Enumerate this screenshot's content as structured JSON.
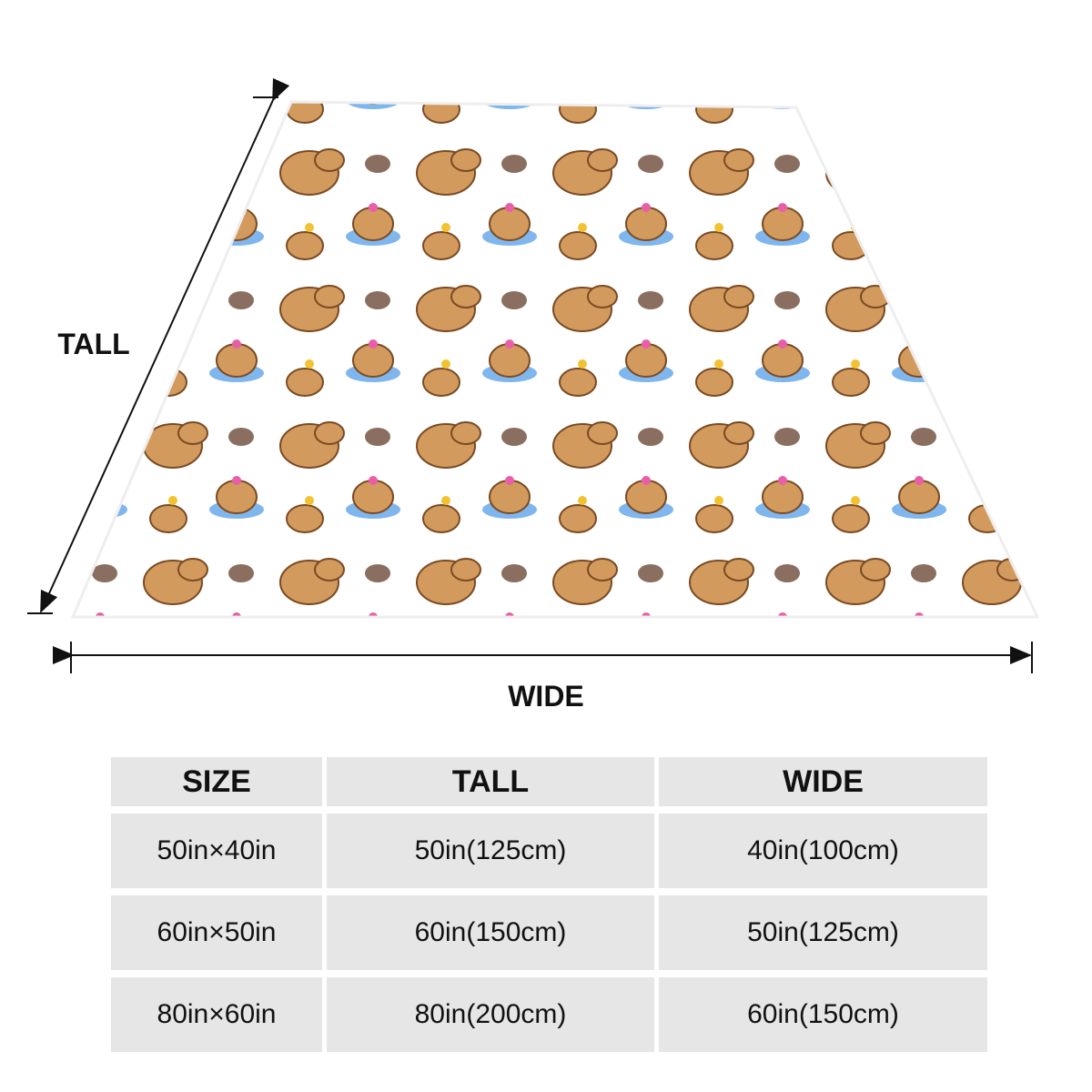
{
  "labels": {
    "tall": "TALL",
    "wide": "WIDE"
  },
  "table": {
    "header": [
      "SIZE",
      "TALL",
      "WIDE"
    ],
    "rows": [
      [
        "50in×40in",
        "50in(125cm)",
        "40in(100cm)"
      ],
      [
        "60in×50in",
        "60in(150cm)",
        "50in(125cm)"
      ],
      [
        "80in×60in",
        "80in(200cm)",
        "60in(150cm)"
      ]
    ]
  }
}
